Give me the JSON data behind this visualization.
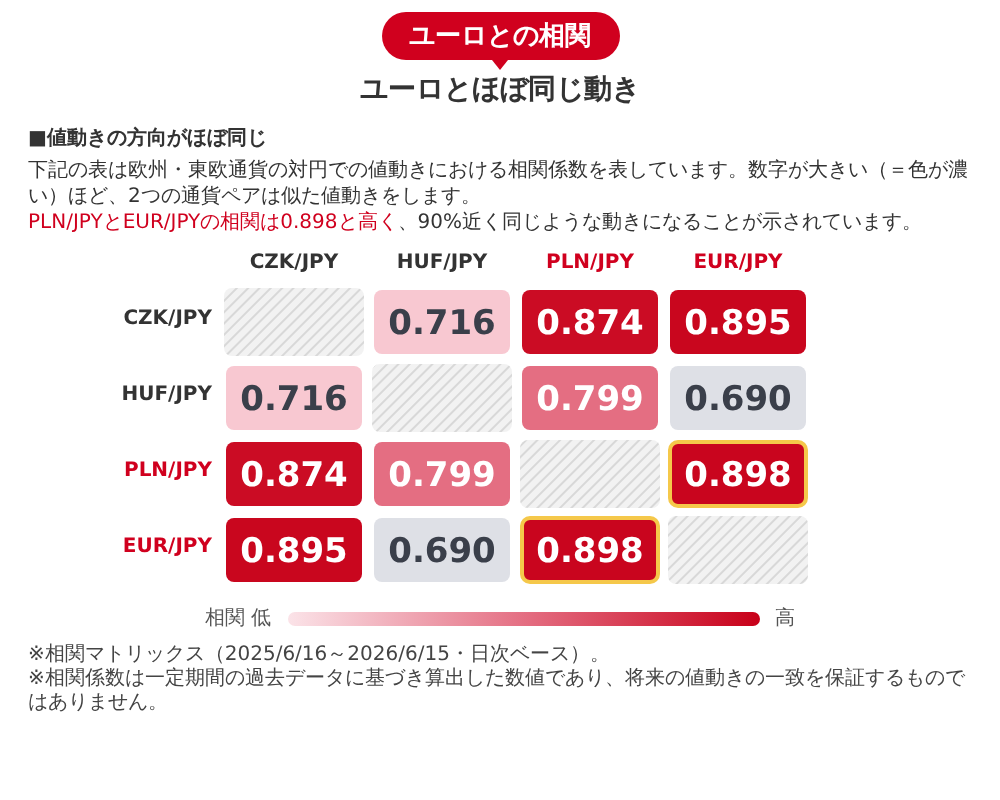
{
  "chart_data": {
    "type": "heatmap",
    "title": "ユーロとの相関",
    "subtitle": "ユーロとほぼ同じ動き",
    "categories": [
      "CZK/JPY",
      "HUF/JPY",
      "PLN/JPY",
      "EUR/JPY"
    ],
    "y_categories": [
      "CZK/JPY",
      "HUF/JPY",
      "PLN/JPY",
      "EUR/JPY"
    ],
    "cells": [
      [
        null,
        0.716,
        0.874,
        0.895
      ],
      [
        0.716,
        null,
        0.799,
        0.69
      ],
      [
        0.874,
        0.799,
        null,
        0.898
      ],
      [
        0.895,
        0.69,
        0.898,
        null
      ]
    ],
    "cell_labels": [
      [
        null,
        "0.716",
        "0.874",
        "0.895"
      ],
      [
        "0.716",
        null,
        "0.799",
        "0.690"
      ],
      [
        "0.874",
        "0.799",
        null,
        "0.898"
      ],
      [
        "0.895",
        "0.690",
        "0.898",
        null
      ]
    ],
    "data_labels": true,
    "clabel": "相関",
    "annotations": [
      "■値動きの方向がほぼ同じ",
      "下記の表は欧州・東欧通貨の対円での値動きにおける相関係数を表しています。数字が大きい（＝色が濃い）ほど、2つの通貨ペアは似た値動きをします。",
      "PLN/JPYとEUR/JPYの相関は0.898と高く",
      "、90%近く同じような動きになることが示されています。",
      "低",
      "高",
      "※相関マトリックス（2025/6/16～2026/6/15・日次ベース）。",
      "※相関係数は一定期間の過去データに基づき算出した数値であり、将来の値動きの一致を保証するものではありません。"
    ]
  }
}
